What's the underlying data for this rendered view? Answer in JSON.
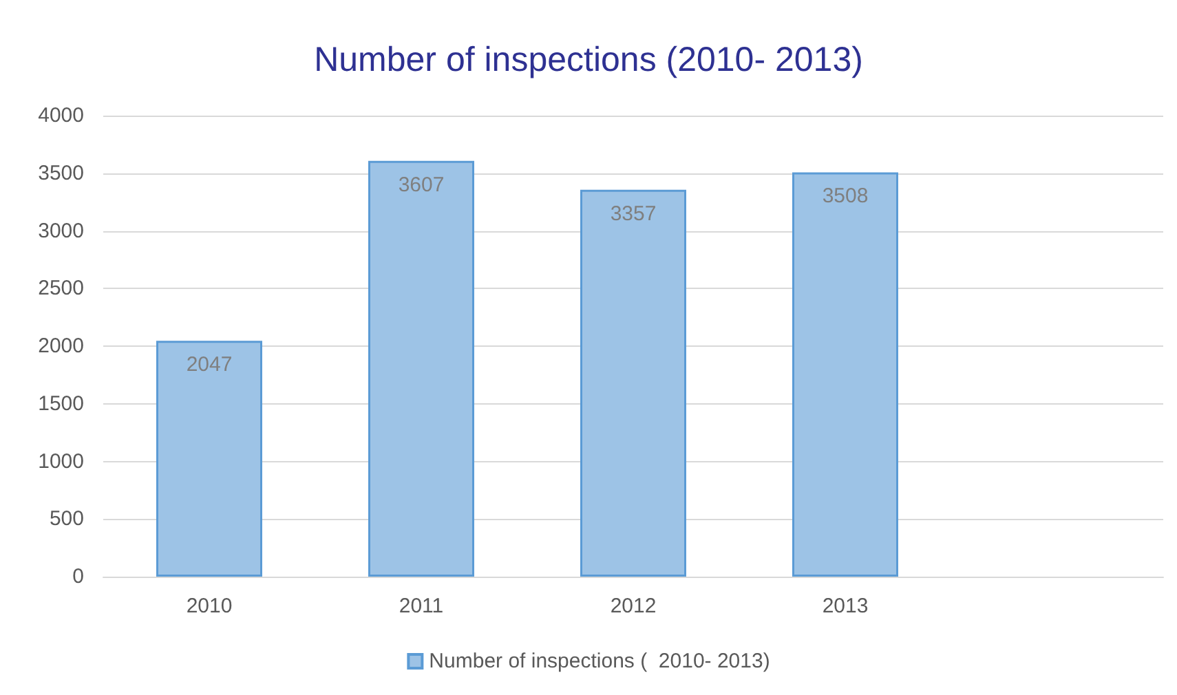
{
  "chart_data": {
    "type": "bar",
    "title": "Number of inspections (2010- 2013)",
    "categories": [
      "2010",
      "2011",
      "2012",
      "2013",
      null
    ],
    "series": [
      {
        "name": "Number of inspections (  2010- 2013)",
        "color": "#9dc3e6",
        "values": [
          2047,
          3607,
          3357,
          3508,
          null
        ]
      }
    ],
    "ylim": [
      0,
      4000
    ],
    "yticks": [
      0,
      500,
      1000,
      1500,
      2000,
      2500,
      3000,
      3500,
      4000
    ],
    "grid": "y",
    "legend": "bottom",
    "data_labels": true
  }
}
